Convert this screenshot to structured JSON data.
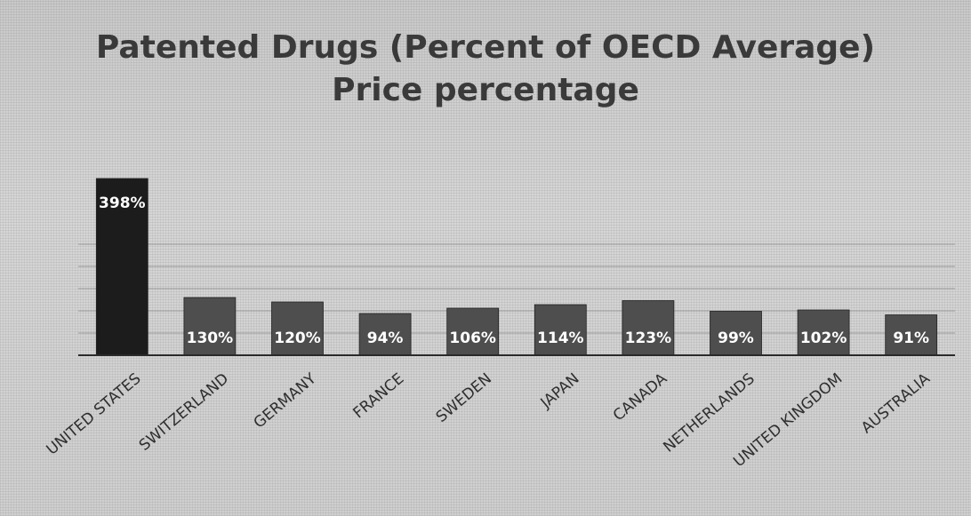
{
  "chart_data": {
    "type": "bar",
    "title": "Patented Drugs (Percent of OECD Average)",
    "subtitle": "Price percentage",
    "categories": [
      "UNITED STATES",
      "SWITZERLAND",
      "GERMANY",
      "FRANCE",
      "SWEDEN",
      "JAPAN",
      "CANADA",
      "NETHERLANDS",
      "UNITED KINGDOM",
      "AUSTRALIA"
    ],
    "values": [
      398,
      130,
      120,
      94,
      106,
      114,
      123,
      99,
      102,
      91
    ],
    "data_labels": [
      "398%",
      "130%",
      "120%",
      "94%",
      "106%",
      "114%",
      "123%",
      "99%",
      "102%",
      "91%"
    ],
    "ylim": [
      0,
      400
    ],
    "grid": true,
    "legend": "none",
    "colors": {
      "highlight": "#1c1c1c",
      "bars": "#4e4e4e",
      "axis": "#2a2a2a",
      "title": "#3a3a3a"
    }
  }
}
